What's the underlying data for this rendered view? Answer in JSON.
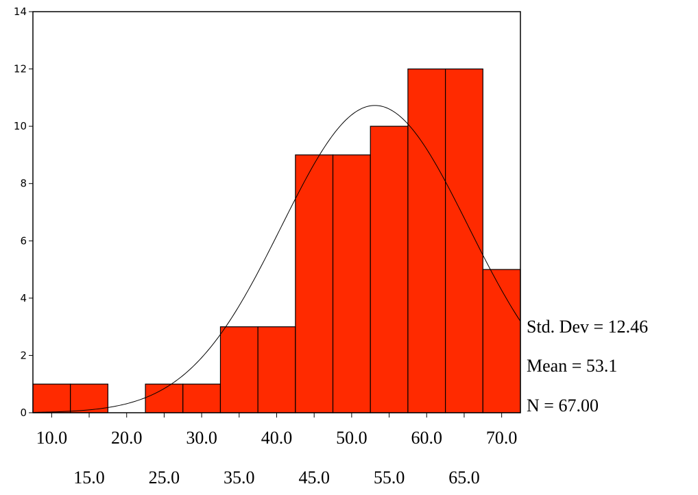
{
  "chart_data": {
    "type": "bar",
    "subtype": "histogram",
    "x_bin_centers": [
      10.0,
      15.0,
      20.0,
      25.0,
      30.0,
      35.0,
      40.0,
      45.0,
      50.0,
      55.0,
      60.0,
      65.0,
      70.0
    ],
    "bin_width": 5.0,
    "values": [
      1,
      1,
      0,
      1,
      1,
      3,
      3,
      9,
      9,
      10,
      12,
      12,
      5
    ],
    "xlim": [
      7.5,
      72.5
    ],
    "ylim": [
      0,
      14
    ],
    "y_ticks": [
      0,
      2,
      4,
      6,
      8,
      10,
      12,
      14
    ],
    "x_ticks_upper": [
      "10.0",
      "20.0",
      "30.0",
      "40.0",
      "50.0",
      "60.0",
      "70.0"
    ],
    "x_ticks_lower": [
      "15.0",
      "25.0",
      "35.0",
      "45.0",
      "55.0",
      "65.0"
    ],
    "normal_curve": {
      "shown": true,
      "mean": 53.1,
      "std_dev": 12.46,
      "n": 67,
      "bin_width": 5.0
    },
    "bar_color": "#ff2a00",
    "stats": {
      "std_dev_text": "Std. Dev = 12.46",
      "mean_text": "Mean = 53.1",
      "n_text": "N = 67.00"
    },
    "title": "",
    "xlabel": "",
    "ylabel": "",
    "grid": false
  }
}
